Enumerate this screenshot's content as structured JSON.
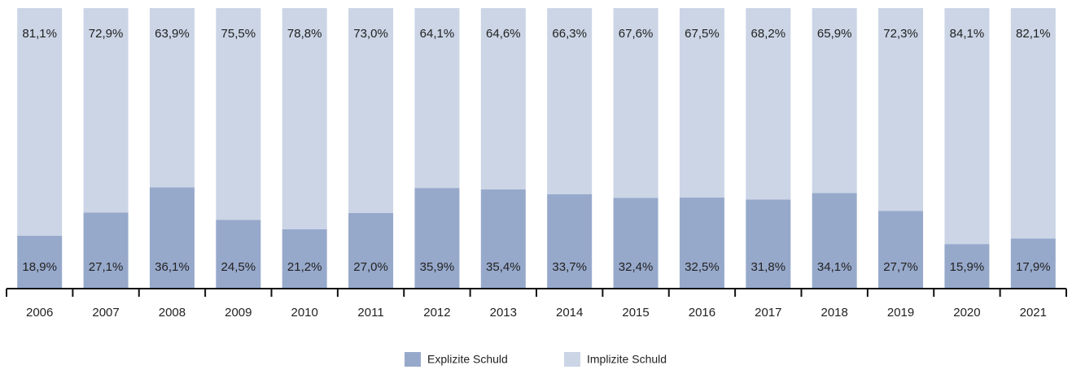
{
  "chart_data": {
    "type": "stacked_bar",
    "categories": [
      "2006",
      "2007",
      "2008",
      "2009",
      "2010",
      "2011",
      "2012",
      "2013",
      "2014",
      "2015",
      "2016",
      "2017",
      "2018",
      "2019",
      "2020",
      "2021"
    ],
    "ylim": [
      0,
      100
    ],
    "series": [
      {
        "name": "Explizite Schuld",
        "color": "#97a9cb",
        "values": [
          18.9,
          27.1,
          36.1,
          24.5,
          21.2,
          27.0,
          35.9,
          35.4,
          33.7,
          32.4,
          32.5,
          31.8,
          34.1,
          27.7,
          15.9,
          17.9
        ],
        "value_labels": [
          "18,9%",
          "27,1%",
          "36,1%",
          "24,5%",
          "21,2%",
          "27,0%",
          "35,9%",
          "35,4%",
          "33,7%",
          "32,4%",
          "32,5%",
          "31,8%",
          "34,1%",
          "27,7%",
          "15,9%",
          "17,9%"
        ]
      },
      {
        "name": "Implizite Schuld",
        "color": "#cbd5e6",
        "values": [
          81.1,
          72.9,
          63.9,
          75.5,
          78.8,
          73.0,
          64.1,
          64.6,
          66.3,
          67.6,
          67.5,
          68.2,
          65.9,
          72.3,
          84.1,
          82.1
        ],
        "value_labels": [
          "81,1%",
          "72,9%",
          "63,9%",
          "75,5%",
          "78,8%",
          "73,0%",
          "64,1%",
          "64,6%",
          "66,3%",
          "67,6%",
          "67,5%",
          "68,2%",
          "65,9%",
          "72,3%",
          "84,1%",
          "82,1%"
        ]
      }
    ]
  }
}
